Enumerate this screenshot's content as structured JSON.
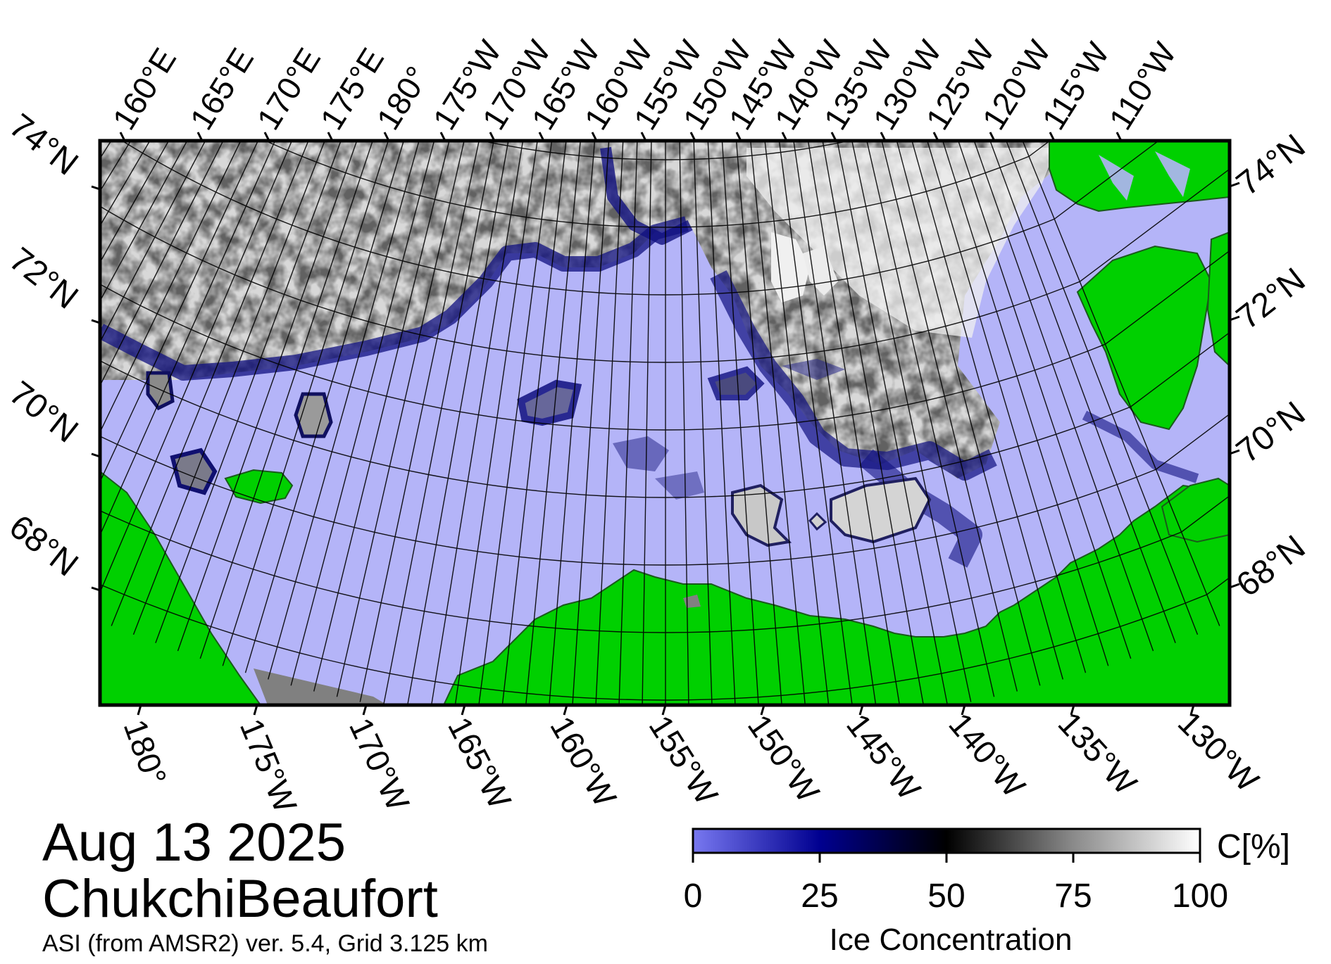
{
  "map": {
    "date": "Aug 13 2025",
    "region": "ChukchiBeaufort",
    "source": "ASI (from AMSR2) ver. 5.4,  Grid 3.125 km",
    "colors": {
      "land": "#00d000",
      "open_water": "#b4b4f8",
      "missing": "#808080",
      "frame": "#000000"
    },
    "top_longitude_labels": [
      "160°E",
      "165°E",
      "170°E",
      "175°E",
      "180°",
      "175°W",
      "170°W",
      "165°W",
      "160°W",
      "155°W",
      "150°W",
      "145°W",
      "140°W",
      "135°W",
      "130°W",
      "125°W",
      "120°W",
      "115°W",
      "110°W"
    ],
    "bottom_longitude_labels": [
      "180°",
      "175°W",
      "170°W",
      "165°W",
      "160°W",
      "155°W",
      "150°W",
      "145°W",
      "140°W",
      "135°W",
      "130°W"
    ],
    "left_latitude_labels": [
      "74°N",
      "72°N",
      "70°N",
      "68°N"
    ],
    "right_latitude_labels": [
      "74°N",
      "72°N",
      "70°N",
      "68°N"
    ]
  },
  "colorbar": {
    "title": "Ice Concentration",
    "unit": "C[%]",
    "ticks": [
      "0",
      "25",
      "50",
      "75",
      "100"
    ],
    "range": [
      0,
      100
    ],
    "stops": [
      {
        "value": 0,
        "color": "#7878f0"
      },
      {
        "value": 25,
        "color": "#000090"
      },
      {
        "value": 50,
        "color": "#000000"
      },
      {
        "value": 75,
        "color": "#8a8a8a"
      },
      {
        "value": 100,
        "color": "#ffffff"
      }
    ]
  }
}
